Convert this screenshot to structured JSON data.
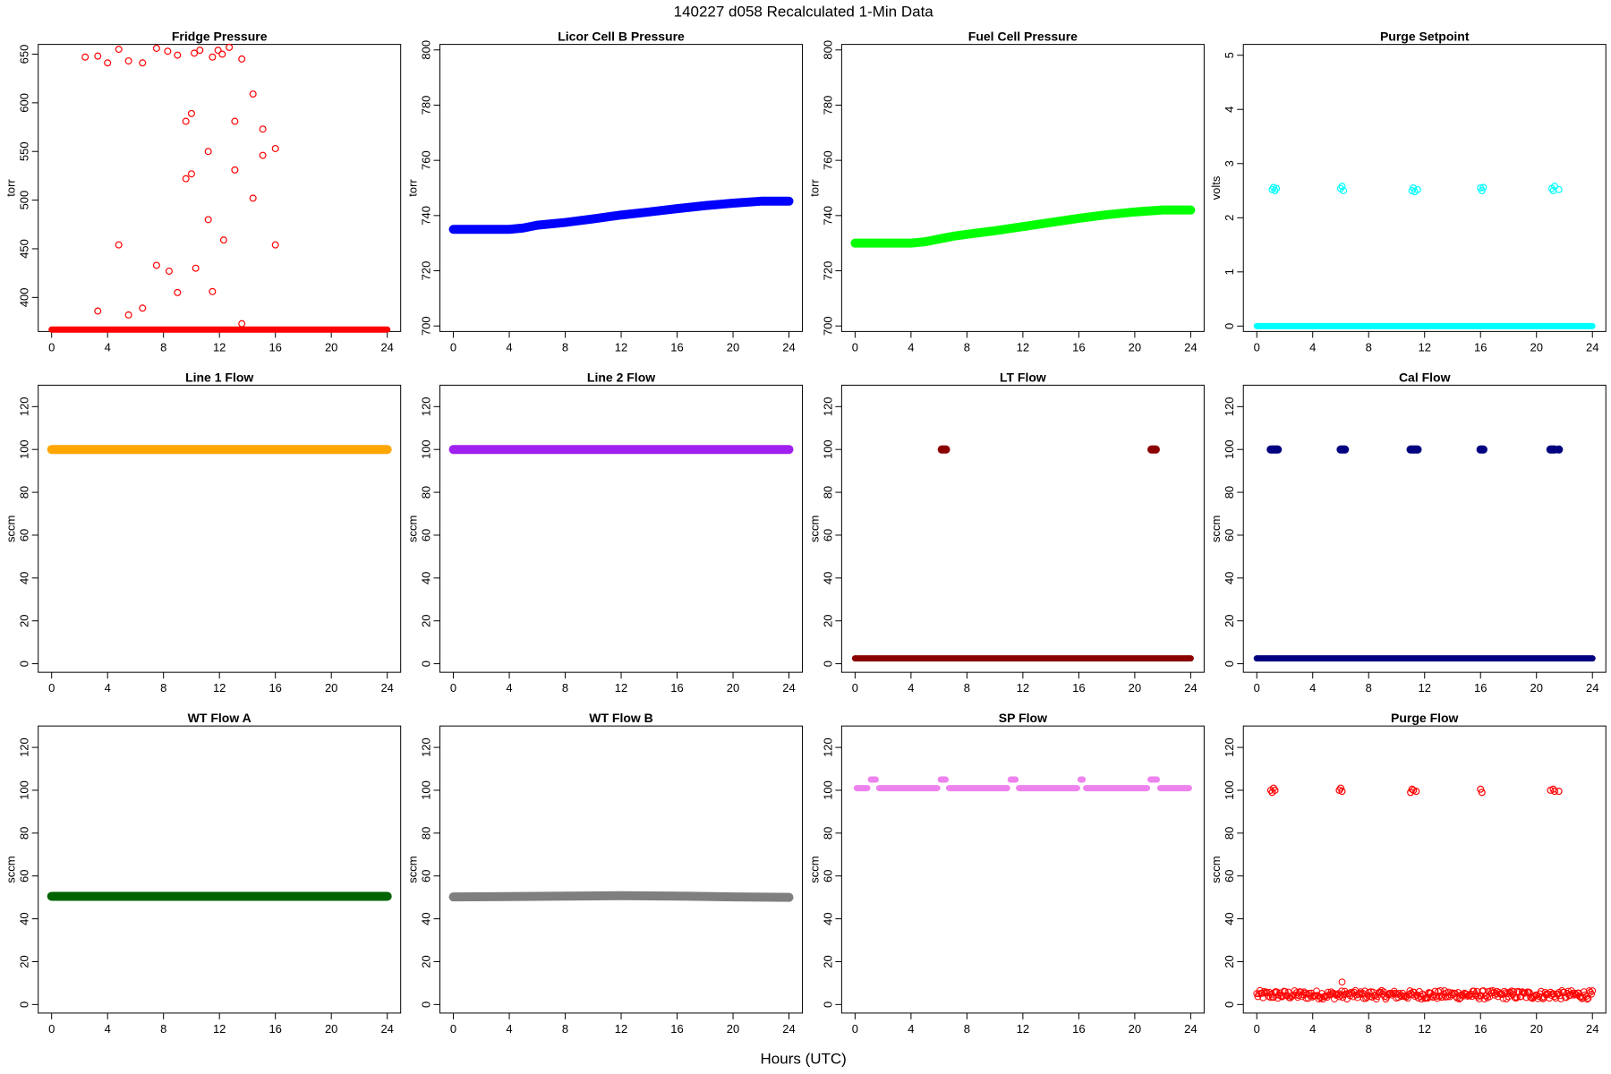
{
  "figure": {
    "title": "140227   d058   Recalculated 1-Min Data",
    "xlabel": "Hours (UTC)"
  },
  "chart_data": [
    {
      "type": "scatter",
      "id": "fridge",
      "title": "Fridge Pressure",
      "ylabel": "torr",
      "color": "#ff0000",
      "marker": "open",
      "xlim": [
        0,
        24
      ],
      "xticks": [
        0,
        4,
        8,
        12,
        16,
        20,
        24
      ],
      "ylim": [
        365,
        660
      ],
      "yticks": [
        400,
        450,
        500,
        550,
        600,
        650
      ],
      "baseline": {
        "y": 367,
        "x0": 0,
        "x1": 24
      },
      "points": [
        [
          2.4,
          647
        ],
        [
          3.3,
          648
        ],
        [
          4.0,
          641
        ],
        [
          4.8,
          655
        ],
        [
          5.5,
          643
        ],
        [
          6.5,
          641
        ],
        [
          7.5,
          656
        ],
        [
          8.3,
          653
        ],
        [
          9.0,
          649
        ],
        [
          10.2,
          651
        ],
        [
          10.6,
          654
        ],
        [
          11.5,
          647
        ],
        [
          11.9,
          654
        ],
        [
          12.2,
          650
        ],
        [
          12.7,
          657
        ],
        [
          13.6,
          645
        ],
        [
          14.4,
          609
        ],
        [
          15.1,
          573
        ],
        [
          9.6,
          581
        ],
        [
          10.0,
          589
        ],
        [
          13.1,
          581
        ],
        [
          11.2,
          550
        ],
        [
          15.1,
          546
        ],
        [
          16.0,
          553
        ],
        [
          9.6,
          522
        ],
        [
          10.0,
          527
        ],
        [
          13.1,
          531
        ],
        [
          14.4,
          502
        ],
        [
          11.2,
          480
        ],
        [
          12.3,
          459
        ],
        [
          4.8,
          454
        ],
        [
          16.0,
          454
        ],
        [
          7.5,
          433
        ],
        [
          8.4,
          427
        ],
        [
          10.3,
          430
        ],
        [
          9.0,
          405
        ],
        [
          11.5,
          406
        ],
        [
          3.3,
          386
        ],
        [
          5.5,
          382
        ],
        [
          6.5,
          389
        ],
        [
          13.6,
          373
        ]
      ]
    },
    {
      "type": "line",
      "id": "licor",
      "title": "Licor Cell B Pressure",
      "ylabel": "torr",
      "color": "#0000ff",
      "xlim": [
        0,
        24
      ],
      "xticks": [
        0,
        4,
        8,
        12,
        16,
        20,
        24
      ],
      "ylim": [
        698,
        802
      ],
      "yticks": [
        700,
        720,
        740,
        760,
        780,
        800
      ],
      "x": [
        0,
        2,
        4,
        5,
        6,
        8,
        10,
        12,
        14,
        16,
        18,
        20,
        22,
        24
      ],
      "y": [
        735,
        735,
        735,
        735.5,
        736.5,
        737.5,
        738.8,
        740.2,
        741.3,
        742.5,
        743.6,
        744.5,
        745.2,
        745.2
      ]
    },
    {
      "type": "line",
      "id": "fuel",
      "title": "Fuel Cell Pressure",
      "ylabel": "torr",
      "color": "#00ff00",
      "xlim": [
        0,
        24
      ],
      "xticks": [
        0,
        4,
        8,
        12,
        16,
        20,
        24
      ],
      "ylim": [
        698,
        802
      ],
      "yticks": [
        700,
        720,
        740,
        760,
        780,
        800
      ],
      "x": [
        0,
        2,
        4,
        5,
        6,
        7,
        8,
        10,
        12,
        14,
        16,
        18,
        20,
        22,
        24
      ],
      "y": [
        730,
        730,
        730,
        730.5,
        731.5,
        732.5,
        733.2,
        734.5,
        736,
        737.5,
        739,
        740.3,
        741.3,
        742,
        742
      ]
    },
    {
      "type": "scatter",
      "id": "purge_setpoint",
      "title": "Purge Setpoint",
      "ylabel": "volts",
      "color": "#00ffff",
      "marker": "open",
      "xlim": [
        0,
        24
      ],
      "xticks": [
        0,
        4,
        8,
        12,
        16,
        20,
        24
      ],
      "ylim": [
        -0.1,
        5.2
      ],
      "yticks": [
        0,
        1,
        2,
        3,
        4,
        5
      ],
      "baseline": {
        "y": 0,
        "x0": 0,
        "x1": 24
      },
      "points": [
        [
          1.1,
          2.52
        ],
        [
          1.2,
          2.56
        ],
        [
          1.3,
          2.5
        ],
        [
          1.4,
          2.54
        ],
        [
          6.0,
          2.54
        ],
        [
          6.1,
          2.58
        ],
        [
          6.2,
          2.5
        ],
        [
          11.1,
          2.5
        ],
        [
          11.2,
          2.55
        ],
        [
          11.3,
          2.48
        ],
        [
          11.5,
          2.52
        ],
        [
          16.0,
          2.55
        ],
        [
          16.1,
          2.5
        ],
        [
          16.2,
          2.56
        ],
        [
          21.1,
          2.54
        ],
        [
          21.2,
          2.5
        ],
        [
          21.3,
          2.58
        ],
        [
          21.6,
          2.52
        ]
      ]
    },
    {
      "type": "line",
      "id": "line1",
      "title": "Line 1 Flow",
      "ylabel": "sccm",
      "color": "#ffa500",
      "xlim": [
        0,
        24
      ],
      "xticks": [
        0,
        4,
        8,
        12,
        16,
        20,
        24
      ],
      "ylim": [
        -4,
        130
      ],
      "yticks": [
        0,
        20,
        40,
        60,
        80,
        100,
        120
      ],
      "x": [
        0,
        24
      ],
      "y": [
        100,
        100
      ]
    },
    {
      "type": "line",
      "id": "line2",
      "title": "Line 2 Flow",
      "ylabel": "sccm",
      "color": "#a020f0",
      "xlim": [
        0,
        24
      ],
      "xticks": [
        0,
        4,
        8,
        12,
        16,
        20,
        24
      ],
      "ylim": [
        -4,
        130
      ],
      "yticks": [
        0,
        20,
        40,
        60,
        80,
        100,
        120
      ],
      "x": [
        0,
        24
      ],
      "y": [
        100,
        100
      ]
    },
    {
      "type": "scatter",
      "id": "lt",
      "title": "LT Flow",
      "ylabel": "sccm",
      "color": "#8b0000",
      "marker": "filled",
      "xlim": [
        0,
        24
      ],
      "xticks": [
        0,
        4,
        8,
        12,
        16,
        20,
        24
      ],
      "ylim": [
        -4,
        130
      ],
      "yticks": [
        0,
        20,
        40,
        60,
        80,
        100,
        120
      ],
      "baseline": {
        "y": 2.5,
        "x0": 0,
        "x1": 24
      },
      "points": [
        [
          6.2,
          100
        ],
        [
          6.3,
          100
        ],
        [
          6.4,
          100
        ],
        [
          6.5,
          100
        ],
        [
          21.2,
          100
        ],
        [
          21.3,
          100
        ],
        [
          21.4,
          100
        ],
        [
          21.5,
          100
        ]
      ]
    },
    {
      "type": "scatter",
      "id": "cal",
      "title": "Cal Flow",
      "ylabel": "sccm",
      "color": "#000080",
      "marker": "filled",
      "xlim": [
        0,
        24
      ],
      "xticks": [
        0,
        4,
        8,
        12,
        16,
        20,
        24
      ],
      "ylim": [
        -4,
        130
      ],
      "yticks": [
        0,
        20,
        40,
        60,
        80,
        100,
        120
      ],
      "baseline": {
        "y": 2.5,
        "x0": 0,
        "x1": 24
      },
      "points": [
        [
          1.0,
          100
        ],
        [
          1.1,
          100
        ],
        [
          1.2,
          100
        ],
        [
          1.3,
          100
        ],
        [
          1.4,
          100
        ],
        [
          1.5,
          100
        ],
        [
          6.0,
          100
        ],
        [
          6.1,
          100
        ],
        [
          6.2,
          100
        ],
        [
          6.3,
          100
        ],
        [
          11.0,
          100
        ],
        [
          11.1,
          100
        ],
        [
          11.2,
          100
        ],
        [
          11.3,
          100
        ],
        [
          11.4,
          100
        ],
        [
          11.5,
          100
        ],
        [
          16.0,
          100
        ],
        [
          16.1,
          100
        ],
        [
          16.2,
          100
        ],
        [
          21.0,
          100
        ],
        [
          21.1,
          100
        ],
        [
          21.2,
          100
        ],
        [
          21.3,
          100
        ],
        [
          21.6,
          100
        ]
      ]
    },
    {
      "type": "line",
      "id": "wta",
      "title": "WT Flow A",
      "ylabel": "sccm",
      "color": "#006400",
      "xlim": [
        0,
        24
      ],
      "xticks": [
        0,
        4,
        8,
        12,
        16,
        20,
        24
      ],
      "ylim": [
        -4,
        130
      ],
      "yticks": [
        0,
        20,
        40,
        60,
        80,
        100,
        120
      ],
      "x": [
        0,
        24
      ],
      "y": [
        50.5,
        50.5
      ]
    },
    {
      "type": "line",
      "id": "wtb",
      "title": "WT Flow B",
      "ylabel": "sccm",
      "color": "#7f7f7f",
      "xlim": [
        0,
        24
      ],
      "xticks": [
        0,
        4,
        8,
        12,
        16,
        20,
        24
      ],
      "ylim": [
        -4,
        130
      ],
      "yticks": [
        0,
        20,
        40,
        60,
        80,
        100,
        120
      ],
      "x": [
        0,
        4,
        8,
        12,
        16,
        20,
        24
      ],
      "y": [
        50.2,
        50.4,
        50.6,
        50.8,
        50.6,
        50.2,
        50
      ]
    },
    {
      "type": "segments",
      "id": "sp",
      "title": "SP Flow",
      "ylabel": "sccm",
      "color": "#ee82ee",
      "xlim": [
        0,
        24
      ],
      "xticks": [
        0,
        4,
        8,
        12,
        16,
        20,
        24
      ],
      "ylim": [
        -4,
        130
      ],
      "yticks": [
        0,
        20,
        40,
        60,
        80,
        100,
        120
      ],
      "segments": [
        [
          0,
          1.0,
          101
        ],
        [
          1.0,
          1.6,
          105
        ],
        [
          1.6,
          6.0,
          101
        ],
        [
          6.0,
          6.6,
          105
        ],
        [
          6.6,
          11.0,
          101
        ],
        [
          11.0,
          11.6,
          105
        ],
        [
          11.6,
          16.0,
          101
        ],
        [
          16.0,
          16.4,
          105
        ],
        [
          16.4,
          21.0,
          101
        ],
        [
          21.0,
          21.7,
          105
        ],
        [
          21.7,
          24,
          101
        ]
      ]
    },
    {
      "type": "scatter",
      "id": "purge_flow",
      "title": "Purge Flow",
      "ylabel": "sccm",
      "color": "#ff0000",
      "marker": "open",
      "xlim": [
        0,
        24
      ],
      "xticks": [
        0,
        4,
        8,
        12,
        16,
        20,
        24
      ],
      "ylim": [
        -4,
        130
      ],
      "yticks": [
        0,
        20,
        40,
        60,
        80,
        100,
        120
      ],
      "noise_band": {
        "x0": 0,
        "x1": 24,
        "y_center": 4.5,
        "y_range": [
          0.5,
          8.5
        ],
        "spike_x": 6.1,
        "spike_y": 10.5
      },
      "points": [
        [
          1.0,
          100
        ],
        [
          1.1,
          99
        ],
        [
          1.2,
          101
        ],
        [
          1.3,
          100
        ],
        [
          5.9,
          100
        ],
        [
          6.0,
          101
        ],
        [
          6.1,
          99.5
        ],
        [
          11.0,
          99
        ],
        [
          11.1,
          100.5
        ],
        [
          11.2,
          100
        ],
        [
          11.4,
          99.5
        ],
        [
          16.0,
          100.5
        ],
        [
          16.1,
          99
        ],
        [
          21.0,
          100
        ],
        [
          21.2,
          100.5
        ],
        [
          21.3,
          99.5
        ],
        [
          21.6,
          99.5
        ]
      ]
    }
  ]
}
